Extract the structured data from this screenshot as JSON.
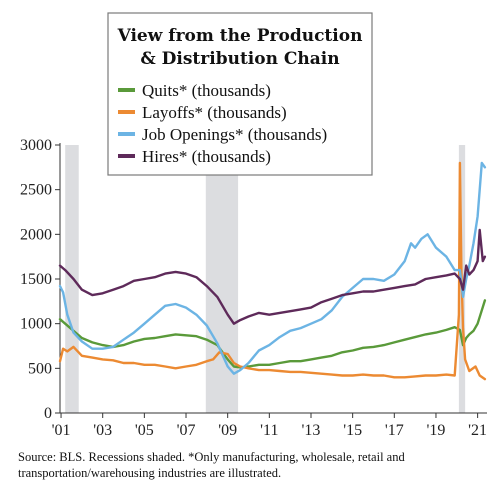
{
  "chart_data": {
    "type": "line",
    "title": [
      "View from the Production",
      "& Distribution Chain"
    ],
    "ylim": [
      0,
      3000
    ],
    "y_ticks": [
      "0",
      "500",
      "1000",
      "1500",
      "2000",
      "2500",
      "3000"
    ],
    "x_tick_labels": [
      "'01",
      "'03",
      "'05",
      "'07",
      "'09",
      "'11",
      "'13",
      "'15",
      "'17",
      "'19",
      "'21"
    ],
    "x_tick_years": [
      2001,
      2003,
      2005,
      2007,
      2009,
      2011,
      2013,
      2015,
      2017,
      2019,
      2021
    ],
    "xlim": [
      2000.95,
      2021.45
    ],
    "recessions": [
      [
        2001.2,
        2001.85
      ],
      [
        2007.95,
        2009.5
      ],
      [
        2020.1,
        2020.4
      ]
    ],
    "legend_position": "top-center",
    "series": [
      {
        "name": "Quits* (thousands)",
        "color": "#5a9a3a",
        "points": [
          [
            2000.95,
            1050
          ],
          [
            2001.2,
            1000
          ],
          [
            2001.6,
            920
          ],
          [
            2002.0,
            840
          ],
          [
            2002.5,
            790
          ],
          [
            2003.0,
            760
          ],
          [
            2003.5,
            740
          ],
          [
            2004.0,
            760
          ],
          [
            2004.5,
            800
          ],
          [
            2005.0,
            830
          ],
          [
            2005.5,
            840
          ],
          [
            2006.0,
            860
          ],
          [
            2006.5,
            880
          ],
          [
            2007.0,
            870
          ],
          [
            2007.5,
            860
          ],
          [
            2008.0,
            820
          ],
          [
            2008.5,
            760
          ],
          [
            2009.0,
            600
          ],
          [
            2009.3,
            520
          ],
          [
            2009.6,
            510
          ],
          [
            2010.0,
            520
          ],
          [
            2010.5,
            540
          ],
          [
            2011.0,
            540
          ],
          [
            2011.5,
            560
          ],
          [
            2012.0,
            580
          ],
          [
            2012.5,
            580
          ],
          [
            2013.0,
            600
          ],
          [
            2013.5,
            620
          ],
          [
            2014.0,
            640
          ],
          [
            2014.5,
            680
          ],
          [
            2015.0,
            700
          ],
          [
            2015.5,
            730
          ],
          [
            2016.0,
            740
          ],
          [
            2016.5,
            760
          ],
          [
            2017.0,
            790
          ],
          [
            2017.5,
            820
          ],
          [
            2018.0,
            850
          ],
          [
            2018.5,
            880
          ],
          [
            2019.0,
            900
          ],
          [
            2019.5,
            930
          ],
          [
            2019.9,
            960
          ],
          [
            2020.15,
            930
          ],
          [
            2020.3,
            760
          ],
          [
            2020.45,
            840
          ],
          [
            2020.6,
            880
          ],
          [
            2020.8,
            920
          ],
          [
            2021.0,
            1000
          ],
          [
            2021.2,
            1150
          ],
          [
            2021.35,
            1260
          ]
        ]
      },
      {
        "name": "Layoffs* (thousands)",
        "color": "#ec8a32",
        "points": [
          [
            2000.95,
            580
          ],
          [
            2001.1,
            720
          ],
          [
            2001.3,
            690
          ],
          [
            2001.6,
            740
          ],
          [
            2002.0,
            640
          ],
          [
            2002.5,
            620
          ],
          [
            2003.0,
            600
          ],
          [
            2003.5,
            590
          ],
          [
            2004.0,
            560
          ],
          [
            2004.5,
            560
          ],
          [
            2005.0,
            540
          ],
          [
            2005.5,
            540
          ],
          [
            2006.0,
            520
          ],
          [
            2006.5,
            500
          ],
          [
            2007.0,
            520
          ],
          [
            2007.5,
            540
          ],
          [
            2008.0,
            580
          ],
          [
            2008.3,
            600
          ],
          [
            2008.6,
            680
          ],
          [
            2009.0,
            660
          ],
          [
            2009.3,
            560
          ],
          [
            2009.6,
            520
          ],
          [
            2010.0,
            500
          ],
          [
            2010.5,
            480
          ],
          [
            2011.0,
            480
          ],
          [
            2011.5,
            470
          ],
          [
            2012.0,
            460
          ],
          [
            2012.5,
            460
          ],
          [
            2013.0,
            450
          ],
          [
            2013.5,
            440
          ],
          [
            2014.0,
            430
          ],
          [
            2014.5,
            420
          ],
          [
            2015.0,
            420
          ],
          [
            2015.5,
            430
          ],
          [
            2016.0,
            420
          ],
          [
            2016.5,
            420
          ],
          [
            2017.0,
            400
          ],
          [
            2017.5,
            400
          ],
          [
            2018.0,
            410
          ],
          [
            2018.5,
            420
          ],
          [
            2019.0,
            420
          ],
          [
            2019.5,
            430
          ],
          [
            2019.9,
            420
          ],
          [
            2020.1,
            1100
          ],
          [
            2020.15,
            2800
          ],
          [
            2020.22,
            1600
          ],
          [
            2020.3,
            950
          ],
          [
            2020.4,
            600
          ],
          [
            2020.6,
            470
          ],
          [
            2020.9,
            520
          ],
          [
            2021.1,
            420
          ],
          [
            2021.35,
            380
          ]
        ]
      },
      {
        "name": "Job Openings* (thousands)",
        "color": "#6cb4e4",
        "points": [
          [
            2000.95,
            1420
          ],
          [
            2001.1,
            1350
          ],
          [
            2001.3,
            1100
          ],
          [
            2001.6,
            900
          ],
          [
            2002.0,
            800
          ],
          [
            2002.5,
            720
          ],
          [
            2003.0,
            720
          ],
          [
            2003.5,
            740
          ],
          [
            2004.0,
            820
          ],
          [
            2004.5,
            900
          ],
          [
            2005.0,
            1000
          ],
          [
            2005.5,
            1100
          ],
          [
            2006.0,
            1200
          ],
          [
            2006.5,
            1220
          ],
          [
            2007.0,
            1180
          ],
          [
            2007.5,
            1100
          ],
          [
            2008.0,
            980
          ],
          [
            2008.5,
            780
          ],
          [
            2009.0,
            520
          ],
          [
            2009.3,
            440
          ],
          [
            2009.6,
            480
          ],
          [
            2010.0,
            560
          ],
          [
            2010.5,
            700
          ],
          [
            2011.0,
            760
          ],
          [
            2011.5,
            850
          ],
          [
            2012.0,
            920
          ],
          [
            2012.5,
            950
          ],
          [
            2013.0,
            1000
          ],
          [
            2013.5,
            1050
          ],
          [
            2014.0,
            1150
          ],
          [
            2014.5,
            1300
          ],
          [
            2015.0,
            1400
          ],
          [
            2015.5,
            1500
          ],
          [
            2016.0,
            1500
          ],
          [
            2016.5,
            1480
          ],
          [
            2017.0,
            1550
          ],
          [
            2017.5,
            1700
          ],
          [
            2017.8,
            1900
          ],
          [
            2018.0,
            1850
          ],
          [
            2018.3,
            1950
          ],
          [
            2018.6,
            2000
          ],
          [
            2019.0,
            1850
          ],
          [
            2019.5,
            1750
          ],
          [
            2019.9,
            1600
          ],
          [
            2020.15,
            1600
          ],
          [
            2020.3,
            1300
          ],
          [
            2020.45,
            1500
          ],
          [
            2020.6,
            1650
          ],
          [
            2020.8,
            1900
          ],
          [
            2021.0,
            2200
          ],
          [
            2021.2,
            2800
          ],
          [
            2021.35,
            2750
          ]
        ]
      },
      {
        "name": "Hires* (thousands)",
        "color": "#5e2a5a",
        "points": [
          [
            2000.95,
            1650
          ],
          [
            2001.2,
            1600
          ],
          [
            2001.6,
            1500
          ],
          [
            2002.0,
            1380
          ],
          [
            2002.5,
            1320
          ],
          [
            2003.0,
            1340
          ],
          [
            2003.5,
            1380
          ],
          [
            2004.0,
            1420
          ],
          [
            2004.5,
            1480
          ],
          [
            2005.0,
            1500
          ],
          [
            2005.5,
            1520
          ],
          [
            2006.0,
            1560
          ],
          [
            2006.5,
            1580
          ],
          [
            2007.0,
            1560
          ],
          [
            2007.5,
            1520
          ],
          [
            2008.0,
            1420
          ],
          [
            2008.5,
            1300
          ],
          [
            2009.0,
            1100
          ],
          [
            2009.3,
            1000
          ],
          [
            2009.6,
            1040
          ],
          [
            2010.0,
            1080
          ],
          [
            2010.5,
            1120
          ],
          [
            2011.0,
            1100
          ],
          [
            2011.5,
            1120
          ],
          [
            2012.0,
            1140
          ],
          [
            2012.5,
            1160
          ],
          [
            2013.0,
            1180
          ],
          [
            2013.5,
            1240
          ],
          [
            2014.0,
            1280
          ],
          [
            2014.5,
            1320
          ],
          [
            2015.0,
            1340
          ],
          [
            2015.5,
            1360
          ],
          [
            2016.0,
            1360
          ],
          [
            2016.5,
            1380
          ],
          [
            2017.0,
            1400
          ],
          [
            2017.5,
            1420
          ],
          [
            2018.0,
            1440
          ],
          [
            2018.5,
            1500
          ],
          [
            2019.0,
            1520
          ],
          [
            2019.5,
            1540
          ],
          [
            2019.9,
            1560
          ],
          [
            2020.15,
            1500
          ],
          [
            2020.3,
            1380
          ],
          [
            2020.45,
            1650
          ],
          [
            2020.6,
            1550
          ],
          [
            2020.8,
            1600
          ],
          [
            2021.0,
            1700
          ],
          [
            2021.1,
            2050
          ],
          [
            2021.25,
            1700
          ],
          [
            2021.35,
            1750
          ]
        ]
      }
    ]
  },
  "footer": {
    "source_text": "Source:  BLS. Recessions shaded. *Only manufacturing, wholesale, retail and transportation/warehousing industries are illustrated."
  }
}
